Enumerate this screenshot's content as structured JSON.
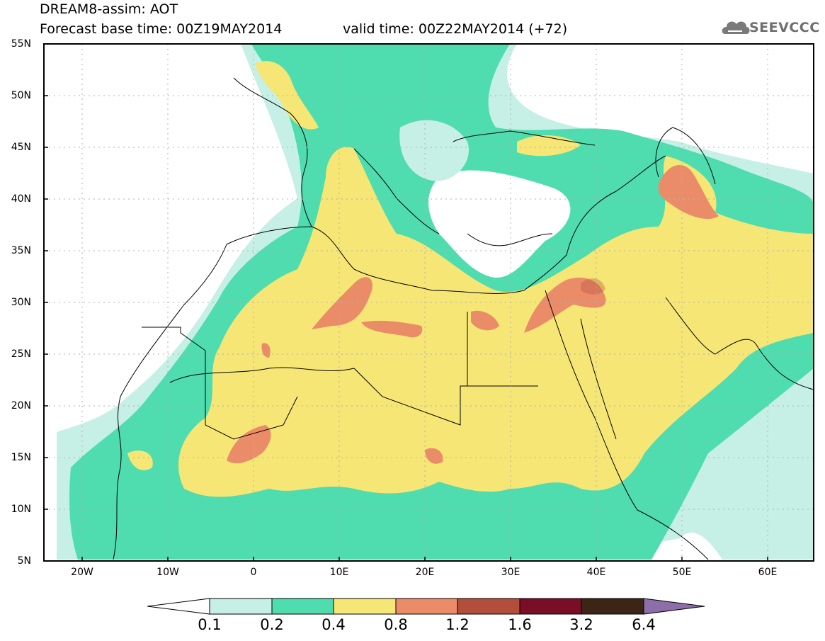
{
  "header": {
    "line1": "DREAM8-assim: AOT",
    "line2": "Forecast base time: 00Z19MAY2014",
    "valid": "valid time: 00Z22MAY2014 (+72)"
  },
  "logo": {
    "text": "SEEVCCC",
    "icon": "cloud-logo-icon"
  },
  "map": {
    "variable": "AOT",
    "lat_labels": [
      "55N",
      "50N",
      "45N",
      "40N",
      "35N",
      "30N",
      "25N",
      "20N",
      "15N",
      "10N",
      "5N"
    ],
    "lon_labels": [
      "20W",
      "10W",
      "0",
      "10E",
      "20E",
      "30E",
      "40E",
      "50E",
      "60E"
    ],
    "grid": true,
    "extent": {
      "lon": [
        -25,
        65
      ],
      "lat": [
        5,
        55
      ]
    }
  },
  "colorbar": {
    "labels": [
      "0.1",
      "0.2",
      "0.4",
      "0.8",
      "1.2",
      "1.6",
      "3.2",
      "6.4"
    ],
    "colors": [
      "#ffffff",
      "#c6efe6",
      "#4fdcae",
      "#f5e675",
      "#eb8c69",
      "#b24e3a",
      "#7a0e26",
      "#3c2514",
      "#8c6ea8"
    ]
  }
}
